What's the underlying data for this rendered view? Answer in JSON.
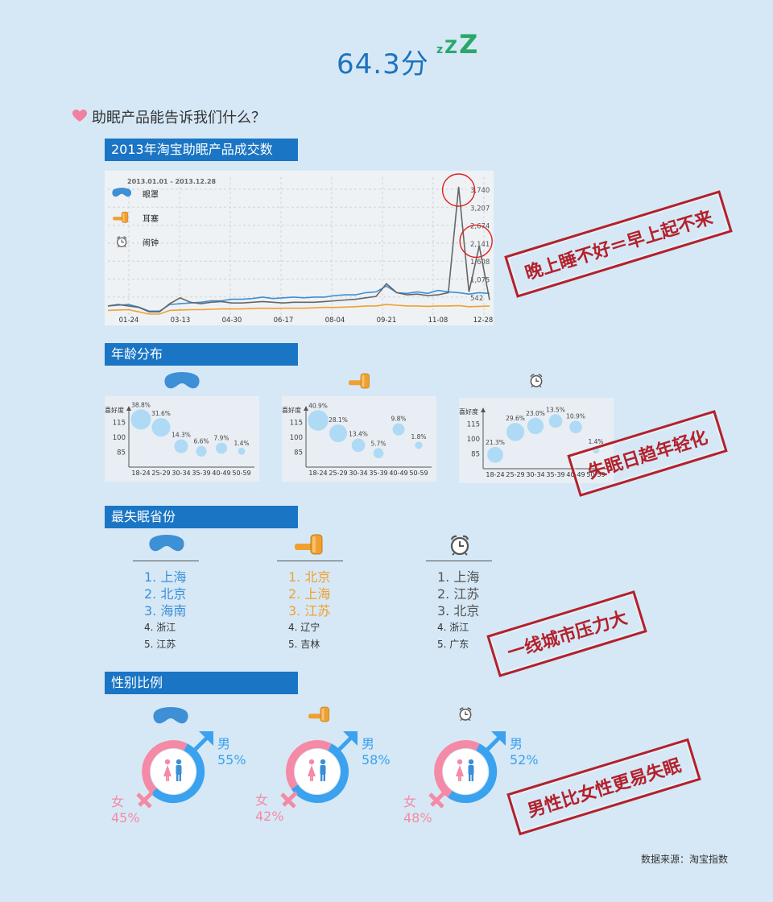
{
  "header": {
    "score": "64.3分",
    "zzz": [
      "z",
      "Z",
      "Z"
    ],
    "question": "助眠产品能告诉我们什么？"
  },
  "colors": {
    "blue": "#3d8fd6",
    "orange": "#f0a030",
    "gray": "#666666",
    "pink": "#f48aa5",
    "light_blue": "#3aa2ee",
    "stamp": "#b3212b",
    "header_bar": "#1a75c4"
  },
  "sections": {
    "trend": "2013年淘宝助眠产品成交数",
    "age": "年龄分布",
    "province": "最失眠省份",
    "gender": "性别比例"
  },
  "product_icons": [
    "eye-mask-icon",
    "earplug-icon",
    "alarm-clock-icon"
  ],
  "stamps": {
    "trend": "晚上睡不好＝早上起不来",
    "age": "失眠日趋年轻化",
    "province": "一线城市压力大",
    "gender": "男性比女性更易失眠"
  },
  "source": "数据来源：淘宝指数",
  "chart_data": [
    {
      "type": "line",
      "title": "2013年淘宝助眠产品成交数",
      "date_range": "2013.01.01 - 2013.12.28",
      "x_ticks": [
        "01-24",
        "03-13",
        "04-30",
        "06-17",
        "08-04",
        "09-21",
        "11-08",
        "12-28"
      ],
      "y_ticks": [
        "3,740",
        "3,207",
        "2,674",
        "2,141",
        "1,608",
        "1,075",
        "542"
      ],
      "ylim": [
        542,
        3740
      ],
      "legend": [
        "眼罩",
        "耳塞",
        "闹钟"
      ],
      "series": [
        {
          "name": "眼罩",
          "color": "#3d8fd6",
          "values": [
            520,
            540,
            560,
            490,
            380,
            380,
            560,
            580,
            600,
            620,
            660,
            660,
            700,
            700,
            720,
            760,
            720,
            740,
            760,
            740,
            760,
            760,
            800,
            820,
            820,
            880,
            900,
            1060,
            880,
            860,
            900,
            860,
            940,
            900,
            880,
            840,
            880,
            860
          ]
        },
        {
          "name": "耳塞",
          "color": "#f0a030",
          "values": [
            400,
            410,
            420,
            360,
            300,
            300,
            400,
            410,
            420,
            420,
            430,
            440,
            440,
            440,
            450,
            460,
            450,
            460,
            460,
            460,
            470,
            480,
            480,
            490,
            500,
            520,
            520,
            560,
            540,
            520,
            520,
            510,
            520,
            520,
            530,
            500,
            510,
            520
          ]
        },
        {
          "name": "闹钟",
          "color": "#666666",
          "values": [
            520,
            560,
            520,
            480,
            360,
            360,
            580,
            740,
            620,
            580,
            620,
            640,
            600,
            600,
            620,
            640,
            620,
            600,
            620,
            620,
            620,
            640,
            660,
            680,
            700,
            740,
            780,
            1120,
            880,
            820,
            840,
            800,
            820,
            880,
            3740,
            900,
            2141,
            680
          ]
        }
      ]
    },
    {
      "type": "scatter",
      "product": "眼罩",
      "ylabel": "喜好度",
      "y_ticks": [
        "115",
        "100",
        "85"
      ],
      "ylim": [
        70,
        130
      ],
      "categories": [
        "18-24",
        "25-29",
        "30-34",
        "35-39",
        "40-49",
        "50-59"
      ],
      "shares": [
        "38.8%",
        "31.6%",
        "14.3%",
        "6.6%",
        "7.9%",
        "1.4%"
      ],
      "preference": [
        118,
        110,
        91,
        86,
        89,
        86
      ]
    },
    {
      "type": "scatter",
      "product": "耳塞",
      "ylabel": "喜好度",
      "y_ticks": [
        "115",
        "100",
        "85"
      ],
      "ylim": [
        70,
        130
      ],
      "categories": [
        "18-24",
        "25-29",
        "30-34",
        "35-39",
        "40-49",
        "50-59"
      ],
      "shares": [
        "40.9%",
        "28.1%",
        "13.4%",
        "5.7%",
        "9.8%",
        "1.8%"
      ],
      "preference": [
        117,
        104,
        92,
        84,
        108,
        92
      ]
    },
    {
      "type": "scatter",
      "product": "闹钟",
      "ylabel": "喜好度",
      "y_ticks": [
        "115",
        "100",
        "85"
      ],
      "ylim": [
        70,
        130
      ],
      "categories": [
        "18-24",
        "25-29",
        "30-34",
        "35-39",
        "40-49",
        "50-59"
      ],
      "shares": [
        "21.3%",
        "29.6%",
        "23.0%",
        "13.5%",
        "10.9%",
        "1.4%"
      ],
      "preference": [
        84,
        107,
        113,
        118,
        112,
        89
      ]
    },
    {
      "type": "donut",
      "product": "眼罩",
      "segments": [
        {
          "label": "男",
          "value": 55,
          "text": "55%"
        },
        {
          "label": "女",
          "value": 45,
          "text": "45%"
        }
      ]
    },
    {
      "type": "donut",
      "product": "耳塞",
      "segments": [
        {
          "label": "男",
          "value": 58,
          "text": "58%"
        },
        {
          "label": "女",
          "value": 42,
          "text": "42%"
        }
      ]
    },
    {
      "type": "donut",
      "product": "闹钟",
      "segments": [
        {
          "label": "男",
          "value": 52,
          "text": "52%"
        },
        {
          "label": "女",
          "value": 48,
          "text": "48%"
        }
      ]
    }
  ],
  "provinces": [
    {
      "product": "眼罩",
      "color": "#3d8fd6",
      "top": [
        "1. 上海",
        "2. 北京",
        "3. 海南"
      ],
      "rest": [
        "4. 浙江",
        "5. 江苏"
      ]
    },
    {
      "product": "耳塞",
      "color": "#f0a030",
      "top": [
        "1. 北京",
        "2. 上海",
        "3. 江苏"
      ],
      "rest": [
        "4. 辽宁",
        "5. 吉林"
      ]
    },
    {
      "product": "闹钟",
      "color": "#555555",
      "top": [
        "1. 上海",
        "2. 江苏",
        "3. 北京"
      ],
      "rest": [
        "4. 浙江",
        "5. 广东"
      ]
    }
  ]
}
